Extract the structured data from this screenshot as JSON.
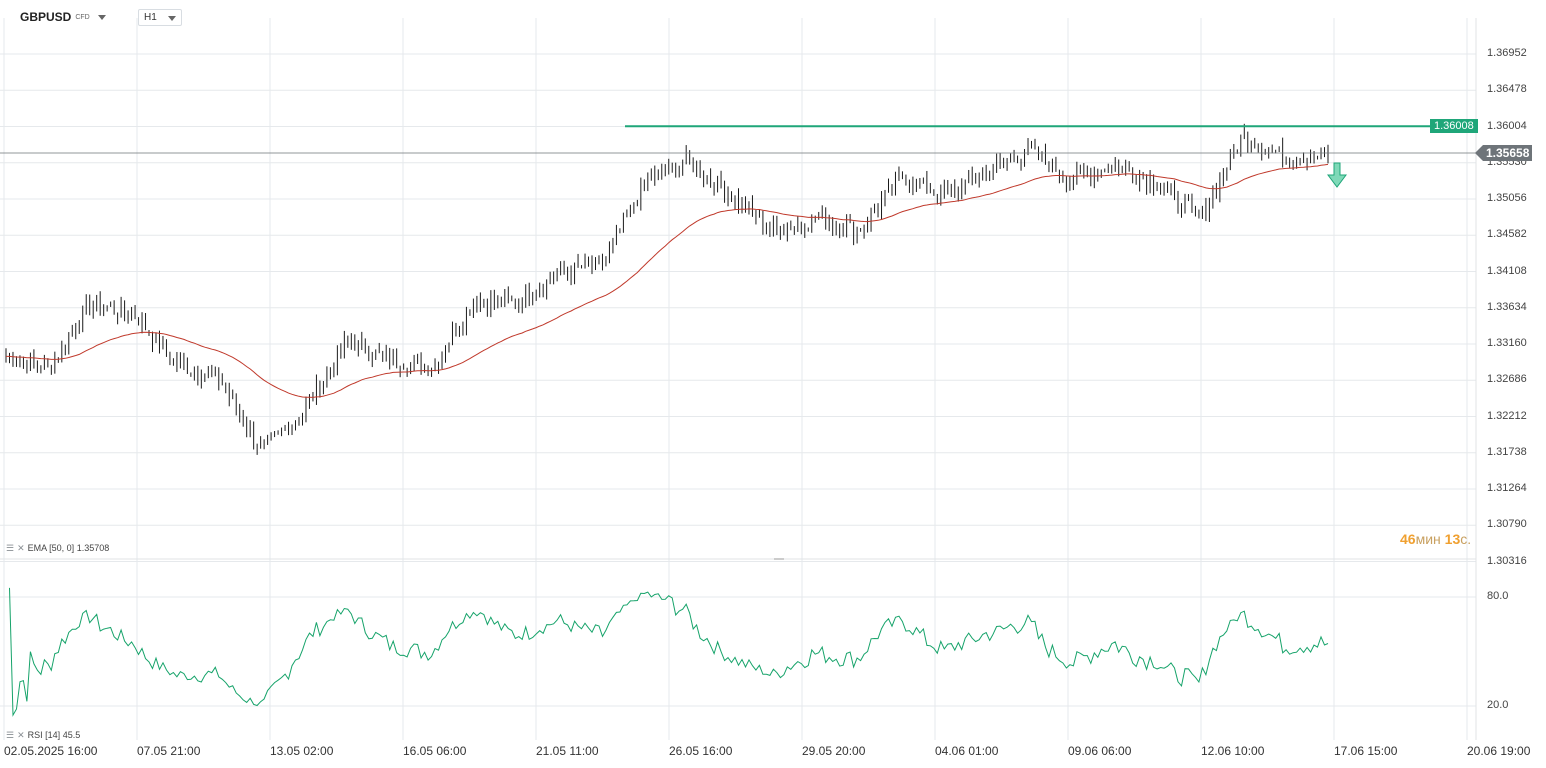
{
  "symbol": {
    "name": "GBPUSD",
    "type": "CFD"
  },
  "timeframe": {
    "value": "H1"
  },
  "price_axis": [
    "1.36952",
    "1.36478",
    "1.36004",
    "1.35530",
    "1.35056",
    "1.34582",
    "1.34108",
    "1.33634",
    "1.33160",
    "1.32686",
    "1.32212",
    "1.31738",
    "1.31264",
    "1.30790",
    "1.30316"
  ],
  "rsi_axis": [
    "80.0",
    "20.0"
  ],
  "time_axis": [
    "02.05.2025  16:00",
    "07.05  21:00",
    "13.05  02:00",
    "16.05  06:00",
    "21.05  11:00",
    "26.05  16:00",
    "29.05  20:00",
    "04.06  01:00",
    "09.06  06:00",
    "12.06  10:00",
    "17.06  15:00",
    "20.06  19:00"
  ],
  "level_badge": "1.36008",
  "current_price_badge": "1.35658",
  "ema": {
    "label": "EMA",
    "params": "[50, 0]",
    "value": "1.35708"
  },
  "rsi": {
    "label": "RSI",
    "params": "[14]",
    "value": "45.5"
  },
  "countdown": {
    "minutes": "46",
    "minutes_unit": "мин",
    "seconds": "13",
    "seconds_unit": "с."
  },
  "colors": {
    "candle": "#1a1a1a",
    "ema": "#c0392b",
    "rsi": "#16a36a",
    "level": "#1fa679",
    "grid": "#e6e9ec"
  },
  "chart_data": {
    "type": "line",
    "price_range": [
      1.3016,
      1.3712
    ],
    "rsi_range": [
      0,
      100
    ],
    "resistance_level": 1.36008,
    "close_series": [
      {
        "x": "02.05",
        "y": 1.33
      },
      {
        "x": "05.05",
        "y": 1.3285
      },
      {
        "x": "06.05",
        "y": 1.337
      },
      {
        "x": "07.05",
        "y": 1.3355
      },
      {
        "x": "08.05",
        "y": 1.329
      },
      {
        "x": "09.05",
        "y": 1.327
      },
      {
        "x": "12.05",
        "y": 1.3175
      },
      {
        "x": "13.05",
        "y": 1.323
      },
      {
        "x": "14.05",
        "y": 1.332
      },
      {
        "x": "15.05",
        "y": 1.3295
      },
      {
        "x": "16.05",
        "y": 1.3285
      },
      {
        "x": "19.05",
        "y": 1.3375
      },
      {
        "x": "20.05",
        "y": 1.337
      },
      {
        "x": "21.05",
        "y": 1.341
      },
      {
        "x": "22.05",
        "y": 1.342
      },
      {
        "x": "23.05",
        "y": 1.353
      },
      {
        "x": "26.05",
        "y": 1.3555
      },
      {
        "x": "27.05",
        "y": 1.351
      },
      {
        "x": "28.05",
        "y": 1.3465
      },
      {
        "x": "29.05",
        "y": 1.348
      },
      {
        "x": "30.05",
        "y": 1.3465
      },
      {
        "x": "02.06",
        "y": 1.3535
      },
      {
        "x": "03.06",
        "y": 1.351
      },
      {
        "x": "04.06",
        "y": 1.354
      },
      {
        "x": "05.06",
        "y": 1.357
      },
      {
        "x": "06.06",
        "y": 1.353
      },
      {
        "x": "09.06",
        "y": 1.355
      },
      {
        "x": "10.06",
        "y": 1.3525
      },
      {
        "x": "11.06",
        "y": 1.348
      },
      {
        "x": "12.06",
        "y": 1.359
      },
      {
        "x": "13.06",
        "y": 1.356
      },
      {
        "x": "16.06",
        "y": 1.3565
      }
    ]
  }
}
